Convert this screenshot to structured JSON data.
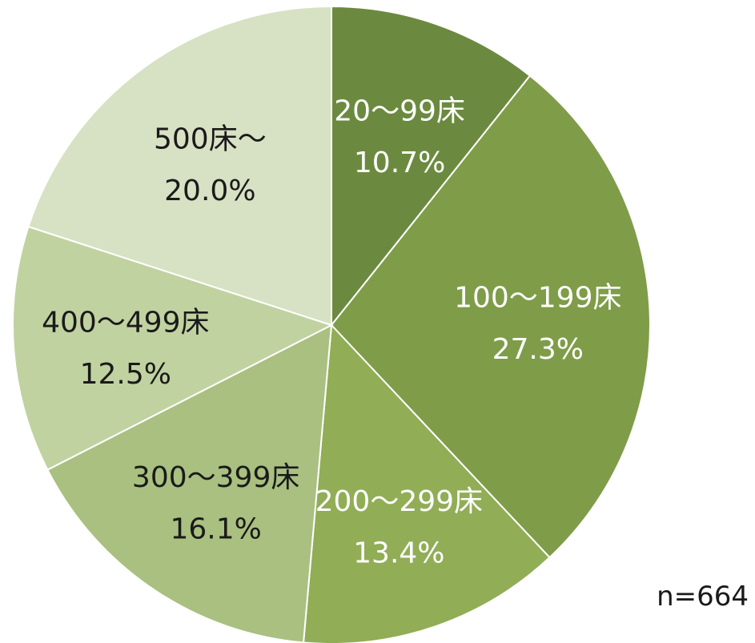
{
  "chart_data": {
    "type": "pie",
    "title": "",
    "note": "n=664",
    "start_angle_deg": 0,
    "direction": "clockwise",
    "slices": [
      {
        "label": "20～99床",
        "value": 10.7,
        "value_label": "10.7%",
        "color": "#6b8a3f",
        "text_color": "#ffffff"
      },
      {
        "label": "100～199床",
        "value": 27.3,
        "value_label": "27.3%",
        "color": "#7f9c48",
        "text_color": "#ffffff"
      },
      {
        "label": "200～299床",
        "value": 13.4,
        "value_label": "13.4%",
        "color": "#91ad56",
        "text_color": "#ffffff"
      },
      {
        "label": "300～399床",
        "value": 16.1,
        "value_label": "16.1%",
        "color": "#a9c080",
        "text_color": "#1a1a1a"
      },
      {
        "label": "400～499床",
        "value": 12.5,
        "value_label": "12.5%",
        "color": "#c1d2a1",
        "text_color": "#1a1a1a"
      },
      {
        "label": "500床～",
        "value": 20.0,
        "value_label": "20.0%",
        "color": "#d7e1c3",
        "text_color": "#1a1a1a"
      }
    ]
  }
}
